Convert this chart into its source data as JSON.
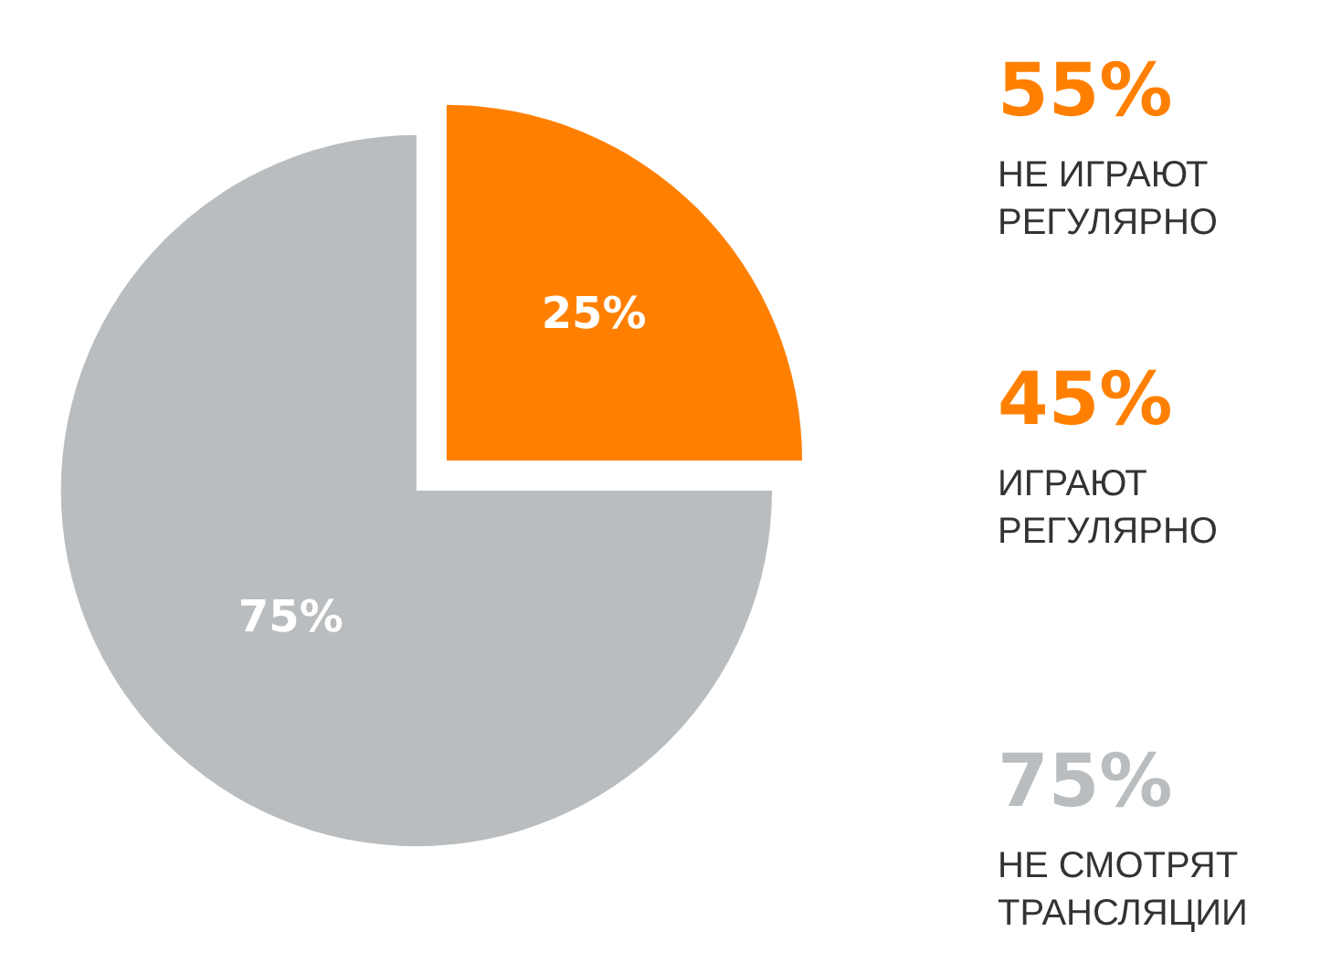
{
  "chart_data": {
    "type": "pie",
    "categories": [
      null,
      null
    ],
    "values": [
      25,
      75
    ],
    "colors": [
      "#ff8000",
      "#babdbf"
    ],
    "value_labels": [
      "25%",
      "75%"
    ],
    "legend": false,
    "annotations": [
      "55%",
      "НЕ ИГРАЮТ\nРЕГУЛЯРНО",
      "45%",
      "ИГРАЮТ\nРЕГУЛЯРНО",
      "75%",
      "НЕ СМОТРЯТ\nТРАНСЛЯЦИИ"
    ]
  }
}
